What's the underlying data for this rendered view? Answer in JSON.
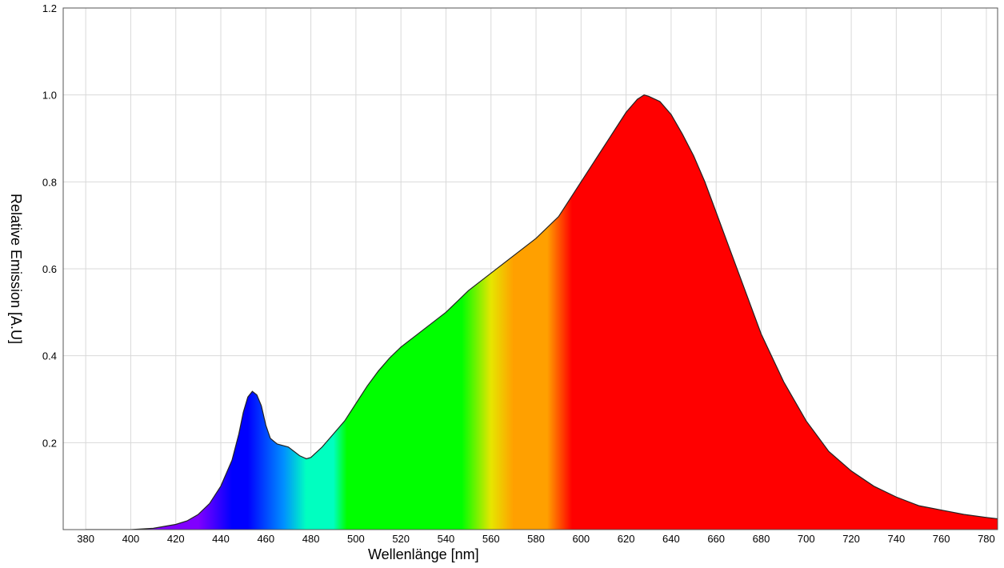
{
  "chart_data": {
    "type": "area",
    "title": "",
    "xlabel": "Wellenlänge [nm]",
    "ylabel": "Relative Emission [A.U]",
    "xlim": [
      370,
      785
    ],
    "ylim": [
      0,
      1.2
    ],
    "grid": true,
    "xticks": [
      380,
      400,
      420,
      440,
      460,
      480,
      500,
      520,
      540,
      560,
      580,
      600,
      620,
      640,
      660,
      680,
      700,
      720,
      740,
      760,
      780
    ],
    "yticks": [
      0.2,
      0.4,
      0.6,
      0.8,
      1.0,
      1.2
    ],
    "ytick_labels": [
      "0.2",
      "0.4",
      "0.6",
      "0.8",
      "1.0",
      "1.2"
    ],
    "fill_colors": {
      "violet": "#8000ff",
      "blue": "#0000ff",
      "cyan": "#00ffc0",
      "green": "#00ff00",
      "yellow": "#e6e600",
      "orange": "#ffa000",
      "red": "#ff0000"
    },
    "series": [
      {
        "x": [
          380,
          400,
          410,
          420,
          425,
          430,
          435,
          440,
          445,
          448,
          450,
          452,
          454,
          456,
          458,
          460,
          462,
          465,
          470,
          475,
          478,
          480,
          485,
          490,
          495,
          500,
          505,
          510,
          515,
          520,
          525,
          530,
          535,
          540,
          545,
          550,
          560,
          570,
          580,
          590,
          600,
          605,
          610,
          615,
          620,
          625,
          628,
          630,
          635,
          640,
          645,
          650,
          655,
          660,
          665,
          670,
          675,
          680,
          690,
          700,
          710,
          720,
          730,
          740,
          750,
          760,
          770,
          780,
          785
        ],
        "y": [
          0.0,
          0.0,
          0.003,
          0.012,
          0.02,
          0.035,
          0.06,
          0.1,
          0.16,
          0.22,
          0.27,
          0.305,
          0.318,
          0.31,
          0.285,
          0.24,
          0.21,
          0.197,
          0.19,
          0.17,
          0.163,
          0.166,
          0.19,
          0.22,
          0.25,
          0.29,
          0.33,
          0.365,
          0.395,
          0.42,
          0.44,
          0.46,
          0.48,
          0.5,
          0.525,
          0.55,
          0.59,
          0.63,
          0.67,
          0.72,
          0.8,
          0.84,
          0.88,
          0.92,
          0.96,
          0.99,
          1.0,
          0.997,
          0.985,
          0.955,
          0.91,
          0.86,
          0.8,
          0.73,
          0.66,
          0.59,
          0.52,
          0.45,
          0.34,
          0.25,
          0.18,
          0.135,
          0.1,
          0.075,
          0.055,
          0.045,
          0.035,
          0.028,
          0.025
        ]
      }
    ]
  }
}
